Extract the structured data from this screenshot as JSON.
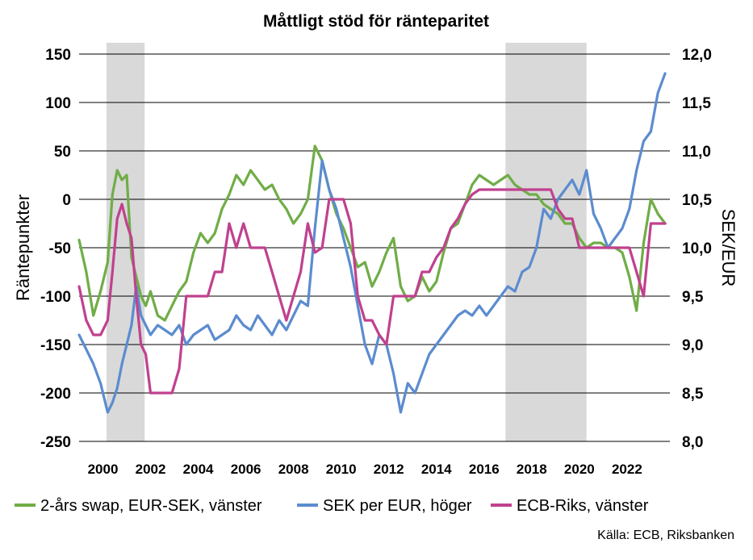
{
  "chart_data": {
    "type": "line",
    "title": "Måttligt stöd för ränteparitet",
    "ylabel_left": "Räntepunkter",
    "ylabel_right": "SEK/EUR",
    "source": "Källa: ECB, Riksbanken",
    "x_range": [
      1999.0,
      2023.8
    ],
    "ylim_left": [
      -250,
      150
    ],
    "ylim_right": [
      8.0,
      12.0
    ],
    "yticks_left": [
      "150",
      "100",
      "50",
      "0",
      "-50",
      "-100",
      "-150",
      "-200",
      "-250"
    ],
    "yticks_right": [
      "12,0",
      "11,5",
      "11,0",
      "10,5",
      "10,0",
      "9,5",
      "9,0",
      "8,5",
      "8,0"
    ],
    "xticks": [
      "2000",
      "2002",
      "2004",
      "2006",
      "2008",
      "2010",
      "2012",
      "2014",
      "2016",
      "2018",
      "2020",
      "2022"
    ],
    "grid": true,
    "legend_position": "bottom",
    "shaded_periods": [
      [
        2000.15,
        2001.75
      ],
      [
        2016.9,
        2020.3
      ]
    ],
    "series": [
      {
        "name": "2-års swap, EUR-SEK, vänster",
        "axis": "left",
        "color": "#70AD47",
        "x": [
          1999.0,
          1999.3,
          1999.6,
          1999.9,
          2000.2,
          2000.4,
          2000.6,
          2000.8,
          2001.0,
          2001.2,
          2001.4,
          2001.6,
          2001.8,
          2002.0,
          2002.3,
          2002.6,
          2002.9,
          2003.2,
          2003.5,
          2003.8,
          2004.1,
          2004.4,
          2004.7,
          2005.0,
          2005.3,
          2005.6,
          2005.9,
          2006.2,
          2006.5,
          2006.8,
          2007.1,
          2007.4,
          2007.7,
          2008.0,
          2008.3,
          2008.6,
          2008.9,
          2009.2,
          2009.5,
          2009.8,
          2010.1,
          2010.4,
          2010.7,
          2011.0,
          2011.3,
          2011.6,
          2011.9,
          2012.2,
          2012.5,
          2012.8,
          2013.1,
          2013.4,
          2013.7,
          2014.0,
          2014.3,
          2014.6,
          2014.9,
          2015.2,
          2015.5,
          2015.8,
          2016.1,
          2016.4,
          2016.7,
          2017.0,
          2017.3,
          2017.6,
          2017.9,
          2018.2,
          2018.5,
          2018.8,
          2019.1,
          2019.4,
          2019.7,
          2020.0,
          2020.3,
          2020.6,
          2020.9,
          2021.2,
          2021.5,
          2021.8,
          2022.1,
          2022.4,
          2022.7,
          2023.0,
          2023.3,
          2023.6
        ],
        "values": [
          -42,
          -75,
          -120,
          -95,
          -65,
          5,
          30,
          20,
          25,
          -60,
          -80,
          -100,
          -110,
          -95,
          -120,
          -125,
          -110,
          -95,
          -85,
          -55,
          -35,
          -45,
          -35,
          -10,
          5,
          25,
          15,
          30,
          20,
          10,
          15,
          0,
          -10,
          -25,
          -15,
          0,
          55,
          40,
          10,
          -15,
          -30,
          -50,
          -70,
          -65,
          -90,
          -75,
          -55,
          -40,
          -90,
          -105,
          -100,
          -80,
          -95,
          -85,
          -55,
          -30,
          -25,
          -5,
          15,
          25,
          20,
          15,
          20,
          25,
          15,
          10,
          5,
          5,
          -5,
          -10,
          -15,
          -25,
          -25,
          -40,
          -50,
          -45,
          -45,
          -50,
          -50,
          -55,
          -80,
          -115,
          -45,
          0,
          -15,
          -25
        ]
      },
      {
        "name": "SEK per EUR, höger",
        "axis": "right",
        "color": "#5B8CCF",
        "x": [
          1999.0,
          1999.3,
          1999.6,
          1999.9,
          2000.2,
          2000.4,
          2000.6,
          2000.8,
          2001.0,
          2001.2,
          2001.4,
          2001.6,
          2001.8,
          2002.0,
          2002.3,
          2002.6,
          2002.9,
          2003.2,
          2003.5,
          2003.8,
          2004.1,
          2004.4,
          2004.7,
          2005.0,
          2005.3,
          2005.6,
          2005.9,
          2006.2,
          2006.5,
          2006.8,
          2007.1,
          2007.4,
          2007.7,
          2008.0,
          2008.3,
          2008.6,
          2008.9,
          2009.2,
          2009.5,
          2009.8,
          2010.1,
          2010.4,
          2010.7,
          2011.0,
          2011.3,
          2011.6,
          2011.9,
          2012.2,
          2012.5,
          2012.8,
          2013.1,
          2013.4,
          2013.7,
          2014.0,
          2014.3,
          2014.6,
          2014.9,
          2015.2,
          2015.5,
          2015.8,
          2016.1,
          2016.4,
          2016.7,
          2017.0,
          2017.3,
          2017.6,
          2017.9,
          2018.2,
          2018.5,
          2018.8,
          2019.1,
          2019.4,
          2019.7,
          2020.0,
          2020.3,
          2020.6,
          2020.9,
          2021.2,
          2021.5,
          2021.8,
          2022.1,
          2022.4,
          2022.7,
          2023.0,
          2023.3,
          2023.6
        ],
        "values": [
          9.1,
          8.95,
          8.8,
          8.6,
          8.3,
          8.4,
          8.55,
          8.8,
          9.0,
          9.2,
          9.6,
          9.3,
          9.2,
          9.1,
          9.2,
          9.15,
          9.1,
          9.2,
          9.0,
          9.1,
          9.15,
          9.2,
          9.05,
          9.1,
          9.15,
          9.3,
          9.2,
          9.15,
          9.3,
          9.2,
          9.1,
          9.25,
          9.15,
          9.3,
          9.45,
          9.4,
          10.2,
          10.9,
          10.6,
          10.4,
          10.1,
          9.8,
          9.4,
          9.0,
          8.8,
          9.1,
          9.0,
          8.7,
          8.3,
          8.6,
          8.5,
          8.7,
          8.9,
          9.0,
          9.1,
          9.2,
          9.3,
          9.35,
          9.3,
          9.4,
          9.3,
          9.4,
          9.5,
          9.6,
          9.55,
          9.75,
          9.8,
          10.0,
          10.4,
          10.3,
          10.5,
          10.6,
          10.7,
          10.55,
          10.8,
          10.35,
          10.2,
          10.0,
          10.1,
          10.2,
          10.4,
          10.8,
          11.1,
          11.2,
          11.6,
          11.8
        ]
      },
      {
        "name": "ECB-Riks, vänster",
        "axis": "left",
        "color": "#C0418F",
        "x": [
          1999.0,
          1999.3,
          1999.6,
          1999.9,
          2000.2,
          2000.4,
          2000.6,
          2000.8,
          2001.0,
          2001.2,
          2001.4,
          2001.6,
          2001.8,
          2002.0,
          2002.3,
          2002.6,
          2002.9,
          2003.2,
          2003.5,
          2003.8,
          2004.1,
          2004.4,
          2004.7,
          2005.0,
          2005.3,
          2005.6,
          2005.9,
          2006.2,
          2006.5,
          2006.8,
          2007.1,
          2007.4,
          2007.7,
          2008.0,
          2008.3,
          2008.6,
          2008.9,
          2009.2,
          2009.5,
          2009.8,
          2010.1,
          2010.4,
          2010.7,
          2011.0,
          2011.3,
          2011.6,
          2011.9,
          2012.2,
          2012.5,
          2012.8,
          2013.1,
          2013.4,
          2013.7,
          2014.0,
          2014.3,
          2014.6,
          2014.9,
          2015.2,
          2015.5,
          2015.8,
          2016.1,
          2016.4,
          2016.7,
          2017.0,
          2017.3,
          2017.6,
          2017.9,
          2018.2,
          2018.5,
          2018.8,
          2019.1,
          2019.4,
          2019.7,
          2020.0,
          2020.3,
          2020.6,
          2020.9,
          2021.2,
          2021.5,
          2021.8,
          2022.1,
          2022.4,
          2022.7,
          2023.0,
          2023.3,
          2023.6
        ],
        "values": [
          -90,
          -125,
          -140,
          -140,
          -125,
          -75,
          -20,
          -5,
          -25,
          -40,
          -100,
          -150,
          -160,
          -200,
          -200,
          -200,
          -200,
          -175,
          -100,
          -100,
          -100,
          -100,
          -75,
          -75,
          -25,
          -50,
          -25,
          -50,
          -50,
          -50,
          -75,
          -100,
          -125,
          -100,
          -75,
          -25,
          -55,
          -50,
          0,
          0,
          0,
          -25,
          -100,
          -125,
          -125,
          -140,
          -150,
          -100,
          -100,
          -100,
          -100,
          -75,
          -75,
          -60,
          -50,
          -30,
          -20,
          -5,
          5,
          10,
          10,
          10,
          10,
          10,
          10,
          10,
          10,
          10,
          10,
          10,
          -10,
          -20,
          -20,
          -50,
          -50,
          -50,
          -50,
          -50,
          -50,
          -50,
          -50,
          -75,
          -100,
          -25,
          -25,
          -25
        ]
      }
    ]
  }
}
